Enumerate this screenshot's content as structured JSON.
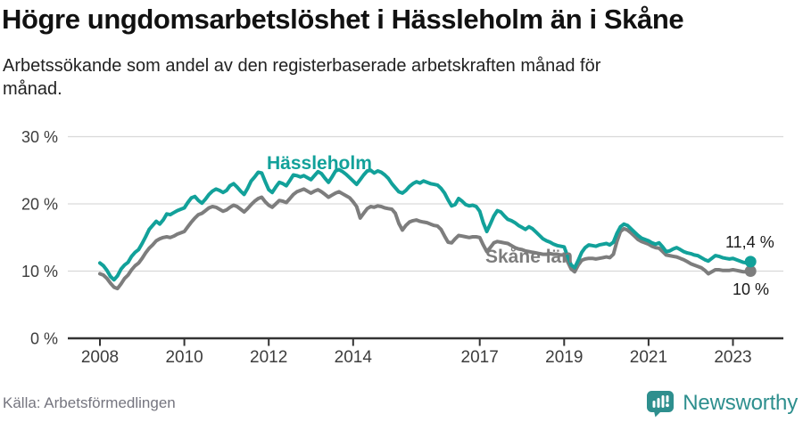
{
  "header": {
    "title": "Högre ungdomsarbetslöshet i Hässleholm än i Skåne",
    "subtitle_line1": "Arbetssökande som andel av den registerbaserade arbetskraften månad för",
    "subtitle_line2": "månad."
  },
  "footer": {
    "source": "Källa: Arbetsförmedlingen",
    "brand": "Newsworthy"
  },
  "colors": {
    "hassleholm": "#12a19a",
    "skane": "#7d7d7d",
    "grid": "#d9d9d9",
    "axis": "#333333",
    "axis_text": "#3d3d3d",
    "value_text": "#1a1a1a",
    "brand_teal": "#2e8f8e"
  },
  "chart_data": {
    "type": "line",
    "title": "Högre ungdomsarbetslöshet i Hässleholm än i Skåne",
    "subtitle": "Arbetssökande som andel av den registerbaserade arbetskraften månad för månad.",
    "unit": "%",
    "x_start_year": 2008,
    "months_per_point": 1,
    "x_tick_years": [
      2008,
      2010,
      2012,
      2014,
      2017,
      2019,
      2021,
      2023
    ],
    "x_tick_labels": [
      "2008",
      "2010",
      "2012",
      "2014",
      "2017",
      "2019",
      "2021",
      "2023"
    ],
    "y_ticks": [
      0,
      10,
      20,
      30
    ],
    "y_tick_labels": [
      "0 %",
      "10 %",
      "20 %",
      "30 %"
    ],
    "ylim": [
      0,
      30
    ],
    "grid": true,
    "legend_position": "inline-labels",
    "series": [
      {
        "name": "Hässleholm",
        "color": "#12a19a",
        "end_label": "11,4 %",
        "end_value": 11.4,
        "values": [
          11.2,
          10.8,
          10.1,
          9.2,
          8.7,
          9.3,
          10.3,
          10.9,
          11.3,
          12.2,
          12.8,
          13.2,
          14.1,
          15.1,
          16.2,
          16.8,
          17.4,
          17.0,
          17.6,
          18.5,
          18.4,
          18.7,
          19.0,
          19.2,
          19.4,
          20.2,
          20.9,
          21.1,
          20.5,
          20.1,
          20.7,
          21.4,
          21.9,
          22.2,
          22.0,
          21.7,
          22.0,
          22.7,
          23.0,
          22.5,
          21.9,
          21.4,
          22.3,
          23.4,
          24.0,
          24.7,
          24.6,
          23.3,
          22.1,
          21.7,
          22.5,
          23.2,
          23.0,
          22.7,
          23.5,
          24.3,
          24.2,
          24.0,
          24.2,
          23.9,
          23.6,
          24.2,
          24.8,
          24.5,
          23.8,
          23.2,
          24.0,
          24.9,
          25.1,
          24.8,
          24.4,
          23.9,
          23.4,
          22.9,
          23.6,
          24.3,
          24.9,
          25.0,
          24.6,
          24.9,
          24.7,
          24.3,
          23.8,
          23.0,
          22.4,
          21.8,
          21.6,
          22.0,
          22.6,
          23.0,
          23.3,
          23.1,
          23.4,
          23.2,
          23.0,
          22.9,
          22.8,
          22.3,
          21.6,
          20.6,
          19.7,
          19.9,
          20.8,
          20.4,
          19.9,
          19.7,
          19.8,
          19.6,
          18.9,
          17.2,
          15.9,
          17.0,
          18.2,
          19.0,
          18.8,
          18.2,
          17.7,
          17.5,
          17.2,
          16.8,
          16.5,
          16.2,
          16.6,
          16.3,
          15.8,
          15.3,
          14.8,
          14.5,
          14.3,
          14.0,
          13.8,
          13.7,
          13.6,
          12.2,
          10.9,
          10.5,
          11.6,
          12.8,
          13.5,
          13.9,
          13.8,
          13.7,
          13.9,
          14.0,
          14.1,
          13.9,
          14.3,
          15.6,
          16.6,
          17.0,
          16.8,
          16.3,
          15.8,
          15.3,
          14.9,
          14.7,
          14.5,
          14.2,
          14.0,
          14.2,
          13.6,
          12.9,
          13.0,
          13.3,
          13.5,
          13.2,
          12.9,
          12.7,
          12.6,
          12.4,
          12.3,
          12.0,
          11.7,
          11.5,
          11.9,
          12.3,
          12.2,
          12.0,
          11.9,
          11.8,
          11.9,
          11.7,
          11.5,
          11.3,
          11.2,
          11.4
        ]
      },
      {
        "name": "Skåne län",
        "color": "#7d7d7d",
        "end_label": "10 %",
        "end_value": 10.0,
        "values": [
          9.6,
          9.4,
          8.9,
          8.2,
          7.6,
          7.4,
          8.1,
          8.9,
          9.4,
          10.2,
          10.8,
          11.2,
          11.9,
          12.7,
          13.4,
          13.9,
          14.5,
          14.8,
          15.0,
          15.1,
          15.0,
          15.2,
          15.5,
          15.7,
          15.9,
          16.6,
          17.3,
          17.9,
          18.4,
          18.6,
          19.0,
          19.4,
          19.6,
          19.5,
          19.2,
          18.9,
          19.1,
          19.5,
          19.8,
          19.6,
          19.2,
          18.8,
          19.3,
          19.9,
          20.4,
          20.8,
          21.0,
          20.3,
          19.8,
          19.5,
          20.0,
          20.5,
          20.4,
          20.2,
          20.8,
          21.4,
          21.8,
          22.0,
          22.2,
          21.9,
          21.6,
          21.9,
          22.1,
          21.8,
          21.4,
          21.0,
          21.3,
          21.6,
          21.8,
          21.5,
          21.2,
          20.9,
          20.3,
          19.6,
          17.9,
          18.6,
          19.3,
          19.6,
          19.5,
          19.7,
          19.6,
          19.4,
          19.3,
          19.2,
          18.6,
          17.1,
          16.1,
          16.8,
          17.3,
          17.5,
          17.6,
          17.4,
          17.3,
          17.2,
          17.0,
          16.8,
          16.7,
          16.2,
          15.2,
          14.3,
          14.2,
          14.8,
          15.3,
          15.2,
          15.1,
          15.0,
          15.1,
          15.1,
          15.0,
          13.9,
          12.9,
          13.5,
          14.2,
          14.4,
          14.3,
          14.2,
          14.1,
          13.8,
          13.5,
          13.3,
          13.2,
          13.0,
          12.9,
          12.8,
          12.7,
          12.6,
          12.5,
          12.5,
          12.6,
          12.5,
          12.5,
          12.4,
          12.4,
          11.4,
          10.3,
          9.9,
          10.9,
          11.6,
          11.8,
          11.9,
          11.9,
          11.8,
          11.9,
          12.0,
          12.1,
          12.0,
          12.5,
          14.4,
          15.9,
          16.3,
          16.1,
          15.7,
          15.2,
          14.7,
          14.4,
          14.2,
          14.0,
          13.7,
          13.5,
          13.4,
          12.9,
          12.4,
          12.3,
          12.2,
          12.1,
          11.9,
          11.7,
          11.4,
          11.1,
          10.9,
          10.7,
          10.5,
          10.1,
          9.6,
          9.9,
          10.2,
          10.2,
          10.1,
          10.1,
          10.1,
          10.2,
          10.1,
          10.0,
          9.9,
          9.9,
          10.0
        ]
      }
    ]
  }
}
